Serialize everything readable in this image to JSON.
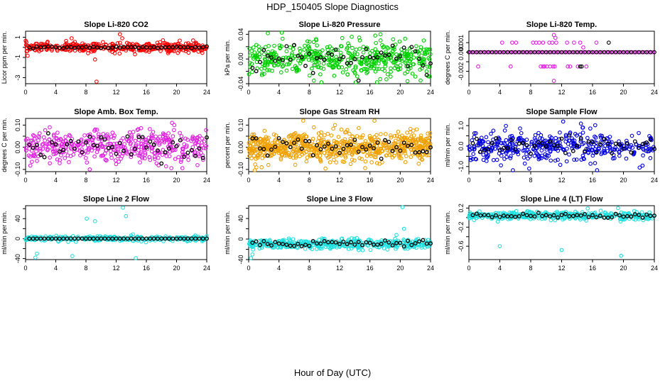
{
  "page": {
    "title": "HDP_150405  Slope Diagnostics",
    "x_axis_title": "Hour of Day (UTC)"
  },
  "chart_data": [
    {
      "type": "scatter",
      "title": "Slope Li-820 CO2",
      "ylabel": "Licor ppm per min.",
      "xlim": [
        0,
        24
      ],
      "ylim": [
        -3.6,
        1.6
      ],
      "yticks": [
        -3,
        -2,
        -1,
        0,
        1
      ],
      "ytick_labels": [
        "-3",
        "",
        "-1",
        "",
        "1"
      ],
      "xticks": [
        0,
        4,
        8,
        12,
        16,
        20,
        24
      ],
      "color": "#ff0000",
      "center": 0,
      "spread": 0.3,
      "n_points": 380,
      "outliers": [
        [
          9.4,
          -3.4
        ],
        [
          9.2,
          -1.2
        ],
        [
          12.5,
          1.3
        ],
        [
          12.8,
          0.9
        ],
        [
          6.1,
          0.9
        ],
        [
          18.2,
          0.7
        ]
      ],
      "black_series": {
        "center": 0,
        "spread": 0.05
      }
    },
    {
      "type": "scatter",
      "title": "Slope Li-820 Pressure",
      "ylabel": "kPa per min.",
      "xlim": [
        0,
        24
      ],
      "ylim": [
        -0.04,
        0.045
      ],
      "yticks": [
        -0.04,
        -0.02,
        0,
        0.02,
        0.04
      ],
      "ytick_labels": [
        "-0.04",
        "",
        "0.00",
        "",
        "0.04"
      ],
      "xticks": [
        0,
        4,
        8,
        12,
        16,
        20,
        24
      ],
      "color": "#00d000",
      "center": 0,
      "spread": 0.017,
      "n_points": 480,
      "outliers": [
        [
          8.6,
          -0.035
        ],
        [
          9.6,
          -0.038
        ],
        [
          13.6,
          0.036
        ],
        [
          16.7,
          0.038
        ],
        [
          17.4,
          0.04
        ],
        [
          23.1,
          0.03
        ],
        [
          23.7,
          -0.028
        ]
      ],
      "black_series": {
        "center": 0,
        "spread": 0.015
      }
    },
    {
      "type": "scatter",
      "title": "Slope Li-820 Temp.",
      "ylabel": "degrees C per min.",
      "xlim": [
        0,
        24
      ],
      "ylim": [
        -0.0033,
        0.0022
      ],
      "yticks": [
        -0.002,
        -0.001,
        0,
        0.001
      ],
      "ytick_labels": [
        "-0.002",
        "",
        "0.000",
        "0.001"
      ],
      "xticks": [
        0,
        4,
        8,
        12,
        16,
        20,
        24
      ],
      "color": "#e020e0",
      "center": 0,
      "spread": 0,
      "n_points": 0,
      "outliers": [],
      "black_series": {
        "center": 0,
        "spread": 0
      }
    },
    {
      "type": "scatter",
      "title": "Slope Amb. Box Temp.",
      "ylabel": "degrees C per min.",
      "xlim": [
        0,
        24
      ],
      "ylim": [
        -0.11,
        0.13
      ],
      "yticks": [
        -0.1,
        -0.05,
        0,
        0.05,
        0.1
      ],
      "ytick_labels": [
        "-0.10",
        "",
        "0.00",
        "",
        "0.10"
      ],
      "xticks": [
        0,
        4,
        8,
        12,
        16,
        20,
        24
      ],
      "color": "#e020e0",
      "center": 0,
      "spread": 0.045,
      "n_points": 420,
      "outliers": [
        [
          8.5,
          -0.1
        ],
        [
          3.2,
          0.09
        ],
        [
          19.4,
          0.11
        ],
        [
          19.7,
          0.1
        ]
      ],
      "black_series": {
        "center": 0,
        "spread": 0.035
      }
    },
    {
      "type": "scatter",
      "title": "Slope Gas Stream RH",
      "ylabel": "percent per min.",
      "xlim": [
        0,
        24
      ],
      "ylim": [
        -0.11,
        0.13
      ],
      "yticks": [
        -0.1,
        -0.05,
        0,
        0.05,
        0.1
      ],
      "ytick_labels": [
        "-0.10",
        "",
        "0.00",
        "",
        "0.10"
      ],
      "xticks": [
        0,
        4,
        8,
        12,
        16,
        20,
        24
      ],
      "color": "#f0a000",
      "center": 0,
      "spread": 0.04,
      "n_points": 700,
      "outliers": [
        [
          7.2,
          0.12
        ],
        [
          11.4,
          0.1
        ],
        [
          16.6,
          0.12
        ],
        [
          1.7,
          -0.09
        ],
        [
          2.6,
          -0.08
        ],
        [
          8.6,
          0.09
        ]
      ],
      "black_series": {
        "center": 0,
        "spread": 0.025
      }
    },
    {
      "type": "scatter",
      "title": "Slope Sample Flow",
      "ylabel": "ml/min per min.",
      "xlim": [
        0,
        24
      ],
      "ylim": [
        -1.25,
        1.35
      ],
      "yticks": [
        -1,
        -0.5,
        0,
        0.5,
        1
      ],
      "ytick_labels": [
        "-1.0",
        "",
        "0.0",
        "",
        "1.0"
      ],
      "xticks": [
        0,
        4,
        8,
        12,
        16,
        20,
        24
      ],
      "color": "#0000e0",
      "center": 0,
      "spread": 0.45,
      "n_points": 420,
      "outliers": [
        [
          12.2,
          1.2
        ],
        [
          14.5,
          1.1
        ],
        [
          7.8,
          -1.1
        ],
        [
          22.1,
          -1.05
        ]
      ],
      "black_series": {
        "center": 0,
        "spread": 0.3
      }
    },
    {
      "type": "scatter",
      "title": "Slope Line 2 Flow",
      "ylabel": "ml/min per min.",
      "xlim": [
        0,
        24
      ],
      "ylim": [
        -42,
        66
      ],
      "yticks": [
        -40,
        -20,
        0,
        20,
        40,
        60
      ],
      "ytick_labels": [
        "-40",
        "",
        "0",
        "",
        "40",
        ""
      ],
      "xticks": [
        0,
        4,
        8,
        12,
        16,
        20,
        24
      ],
      "color": "#20e0e0",
      "center": 0,
      "spread": 3,
      "n_points": 300,
      "outliers": [
        [
          1.3,
          -38
        ],
        [
          1.5,
          -30
        ],
        [
          6.2,
          -35
        ],
        [
          8.1,
          40
        ],
        [
          9.2,
          35
        ],
        [
          12.9,
          62
        ],
        [
          13.3,
          45
        ],
        [
          14.6,
          -40
        ]
      ],
      "black_series": {
        "center": 0,
        "spread": 0
      }
    },
    {
      "type": "scatter",
      "title": "Slope Line 3 Flow",
      "ylabel": "ml/min per min.",
      "xlim": [
        0,
        24
      ],
      "ylim": [
        -40,
        65
      ],
      "yticks": [
        -40,
        -20,
        0,
        20,
        40,
        60
      ],
      "ytick_labels": [
        "-40",
        "",
        "0",
        "",
        "40",
        ""
      ],
      "xticks": [
        0,
        4,
        8,
        12,
        16,
        20,
        24
      ],
      "color": "#20e0e0",
      "center": -10,
      "spread": 6,
      "n_points": 420,
      "outliers": [
        [
          0.3,
          -38
        ],
        [
          0.5,
          -30
        ],
        [
          19.5,
          8
        ],
        [
          20.3,
          62
        ],
        [
          20.5,
          20
        ]
      ],
      "black_series": {
        "center": -8,
        "spread": 4
      }
    },
    {
      "type": "scatter",
      "title": "Slope Line 4 (LT) Flow",
      "ylabel": "ml/min per min.",
      "xlim": [
        0,
        24
      ],
      "ylim": [
        -0.88,
        0.25
      ],
      "yticks": [
        -0.6,
        -0.4,
        -0.2,
        0,
        0.2
      ],
      "ytick_labels": [
        "-0.6",
        "",
        "-0.2",
        "",
        "0.2"
      ],
      "xticks": [
        0,
        4,
        8,
        12,
        16,
        20,
        24
      ],
      "color": "#20e0e0",
      "center": 0.04,
      "spread": 0.05,
      "n_points": 420,
      "outliers": [
        [
          4.0,
          -0.6
        ],
        [
          12.0,
          -0.68
        ],
        [
          19.7,
          -0.8
        ],
        [
          19.3,
          0.2
        ]
      ],
      "black_series": {
        "center": 0.04,
        "spread": 0.03
      }
    }
  ],
  "panel3_series": {
    "black_zero_line": 0,
    "magenta_levels": [
      0.001,
      0,
      -0.0015,
      -0.003
    ],
    "magenta_points": [
      [
        4.3,
        0.001
      ],
      [
        5.6,
        0.001
      ],
      [
        6.1,
        0.001
      ],
      [
        8.3,
        0.001
      ],
      [
        8.7,
        0.001
      ],
      [
        9.1,
        0.001
      ],
      [
        9.6,
        0.001
      ],
      [
        10.4,
        0.001
      ],
      [
        10.8,
        0.001
      ],
      [
        11.3,
        0.001
      ],
      [
        12.7,
        0.001
      ],
      [
        13.6,
        0.001
      ],
      [
        14.4,
        0.001
      ],
      [
        16.5,
        0.001
      ],
      [
        1.2,
        -0.0015
      ],
      [
        5.4,
        -0.0015
      ],
      [
        9.3,
        -0.0015
      ],
      [
        9.6,
        -0.0015
      ],
      [
        9.8,
        -0.0015
      ],
      [
        10.1,
        -0.0015
      ],
      [
        10.5,
        -0.0015
      ],
      [
        10.9,
        -0.0015
      ],
      [
        11.1,
        -0.0015
      ],
      [
        12.8,
        -0.0015
      ],
      [
        13.1,
        -0.0015
      ],
      [
        14.1,
        -0.0015
      ],
      [
        15.2,
        -0.0015
      ],
      [
        11.0,
        0.0018
      ],
      [
        11.2,
        0.0015
      ],
      [
        11.0,
        -0.003
      ],
      [
        14.8,
        0.0005
      ]
    ],
    "black_points": [
      [
        14.4,
        -0.0015
      ],
      [
        14.6,
        -0.0015
      ],
      [
        18.1,
        0.001
      ]
    ]
  }
}
